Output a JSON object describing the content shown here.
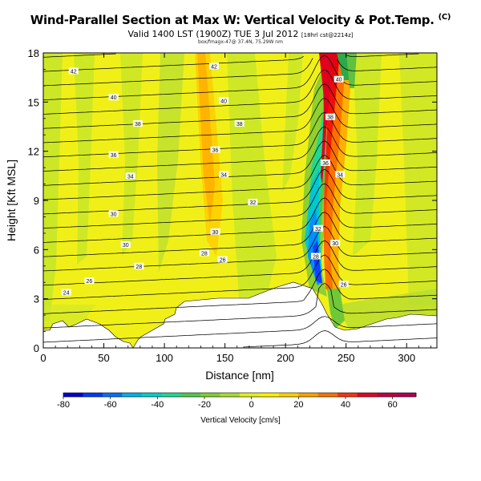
{
  "chart_data": {
    "type": "heatmap",
    "title": "Wind-Parallel Section at Max W: Vertical Velocity & Pot.Temp.",
    "title_mark": "(C)",
    "subtitle": "Valid 1400 LST (1900Z) TUE 3 Jul 2012",
    "subtitle_note": "[18hrl cst@2214z]",
    "subtitle2": "box/fmagx-47@ 37.4N, 75.29W nm",
    "xlabel": "Distance [nm]",
    "ylabel": "Height [Kft MSL]",
    "xlim": [
      0,
      325
    ],
    "ylim": [
      0,
      18
    ],
    "xticks": [
      "0",
      "50",
      "100",
      "150",
      "200",
      "250",
      "300"
    ],
    "yticks": [
      "0",
      "3",
      "6",
      "9",
      "12",
      "15",
      "18"
    ],
    "colorbar": {
      "label": "Vertical Velocity [cm/s]",
      "min": -80,
      "max": 70,
      "ticks": [
        "-80",
        "-60",
        "-40",
        "-20",
        "0",
        "20",
        "40",
        "60"
      ],
      "colors": [
        "#0000d8",
        "#0038ff",
        "#0070ff",
        "#00b0f0",
        "#00d0c8",
        "#20d890",
        "#50c850",
        "#80d030",
        "#a8dc30",
        "#e0f020",
        "#fff000",
        "#ffd000",
        "#ffa000",
        "#ff7000",
        "#ff3010",
        "#e80020",
        "#c00040",
        "#b00050"
      ]
    },
    "contour_labels": [
      {
        "text": "42",
        "x": 25,
        "y": 16.9
      },
      {
        "text": "42",
        "x": 141,
        "y": 17.2
      },
      {
        "text": "40",
        "x": 58,
        "y": 15.3
      },
      {
        "text": "40",
        "x": 149,
        "y": 15.1
      },
      {
        "text": "40",
        "x": 244,
        "y": 16.4
      },
      {
        "text": "38",
        "x": 78,
        "y": 13.7
      },
      {
        "text": "38",
        "x": 162,
        "y": 13.7
      },
      {
        "text": "38",
        "x": 237,
        "y": 14.1
      },
      {
        "text": "36",
        "x": 58,
        "y": 11.8
      },
      {
        "text": "36",
        "x": 142,
        "y": 12.1
      },
      {
        "text": "36",
        "x": 233,
        "y": 11.3
      },
      {
        "text": "34",
        "x": 72,
        "y": 10.5
      },
      {
        "text": "34",
        "x": 149,
        "y": 10.6
      },
      {
        "text": "34",
        "x": 245,
        "y": 10.6
      },
      {
        "text": "32",
        "x": 173,
        "y": 8.9
      },
      {
        "text": "32",
        "x": 227,
        "y": 7.3
      },
      {
        "text": "30",
        "x": 58,
        "y": 8.2
      },
      {
        "text": "30",
        "x": 142,
        "y": 7.1
      },
      {
        "text": "30",
        "x": 68,
        "y": 6.3
      },
      {
        "text": "30",
        "x": 241,
        "y": 6.4
      },
      {
        "text": "28",
        "x": 79,
        "y": 5.0
      },
      {
        "text": "28",
        "x": 133,
        "y": 5.8
      },
      {
        "text": "28",
        "x": 225,
        "y": 5.6
      },
      {
        "text": "26",
        "x": 148,
        "y": 5.4
      },
      {
        "text": "26",
        "x": 38,
        "y": 4.1
      },
      {
        "text": "26",
        "x": 248,
        "y": 3.9
      },
      {
        "text": "24",
        "x": 19,
        "y": 3.4
      }
    ]
  }
}
